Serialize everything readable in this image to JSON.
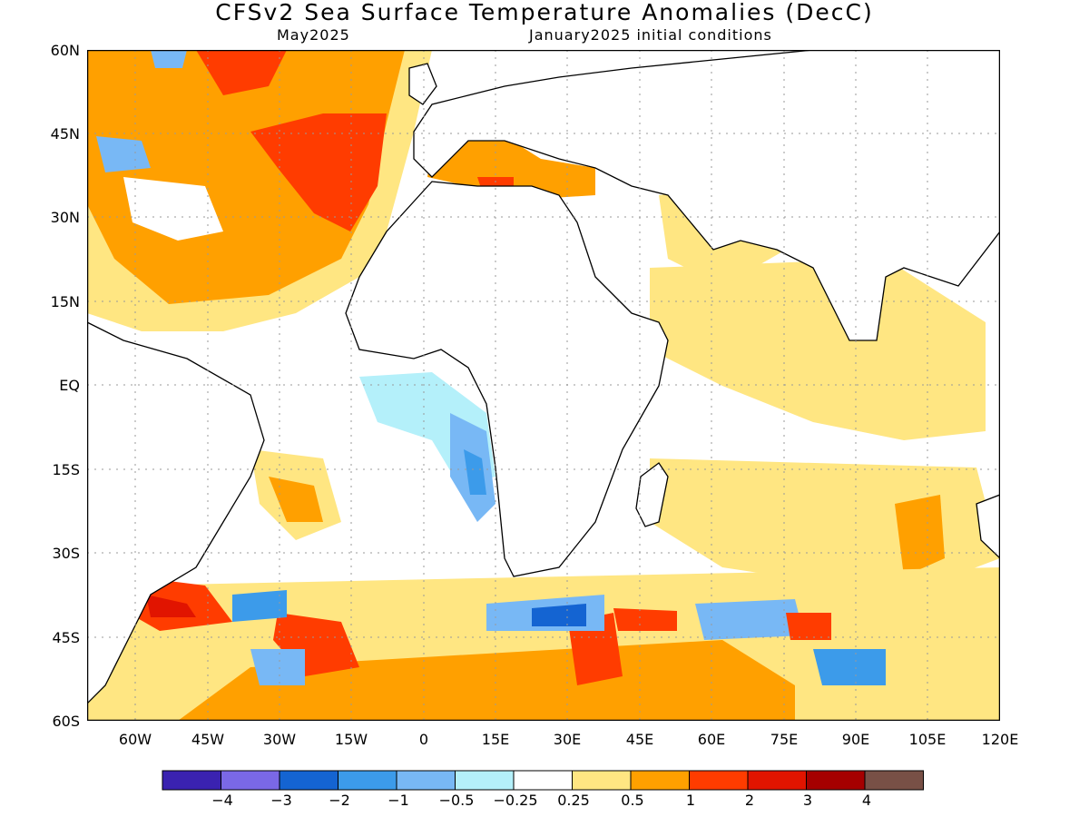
{
  "title": "CFSv2 Sea Surface Temperature Anomalies (DecC)",
  "target_month": "May2025",
  "init_conditions": "January2025 initial conditions",
  "map": {
    "lat_labels": [
      "60N",
      "45N",
      "30N",
      "15N",
      "EQ",
      "15S",
      "30S",
      "45S",
      "60S"
    ],
    "lon_labels": [
      "60W",
      "45W",
      "30W",
      "15W",
      "0",
      "15E",
      "30E",
      "45E",
      "60E",
      "75E",
      "90E",
      "105E",
      "120E"
    ],
    "extent": {
      "lon_min": -70,
      "lon_max": 120,
      "lat_min": -60,
      "lat_max": 60
    }
  },
  "colorbar": {
    "colors": [
      "#3a22b0",
      "#7a68e6",
      "#1464d2",
      "#3c9bea",
      "#78b8f5",
      "#b4f0fa",
      "#ffffff",
      "#ffe682",
      "#ffa000",
      "#ff3c00",
      "#e11400",
      "#a50000",
      "#785046"
    ],
    "labels": [
      "−4",
      "−3",
      "−2",
      "−1",
      "−0.5",
      "−0.25",
      "0.25",
      "0.5",
      "1",
      "2",
      "3",
      "4"
    ]
  }
}
